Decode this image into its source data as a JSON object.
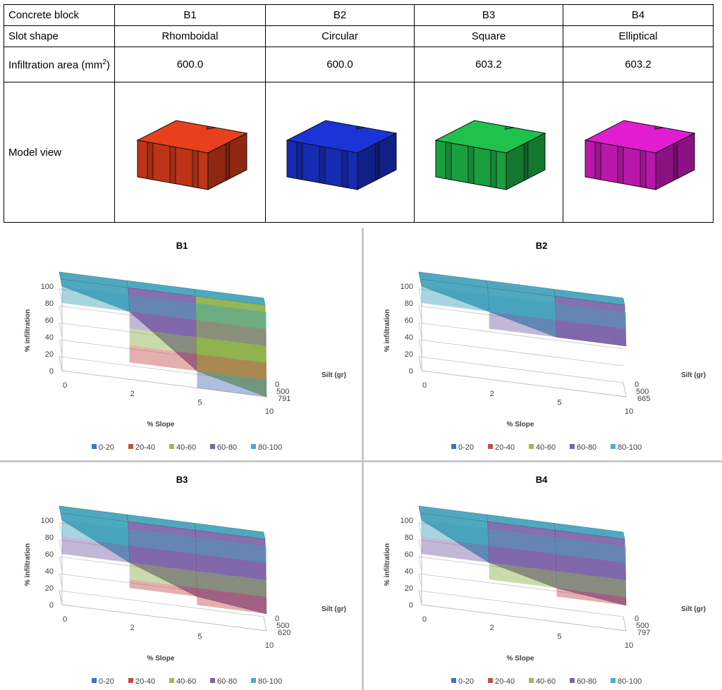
{
  "table": {
    "rows": [
      {
        "label": "Concrete block",
        "cells": [
          "B1",
          "B2",
          "B3",
          "B4"
        ]
      },
      {
        "label": "Slot shape",
        "cells": [
          "Rhomboidal",
          "Circular",
          "Square",
          "Elliptical"
        ]
      },
      {
        "label": "Infiltration area (mm",
        "label_sup": "2",
        "label_end": ")",
        "cells": [
          "600.0",
          "600.0",
          "603.2",
          "603.2"
        ]
      },
      {
        "label": "Model view"
      }
    ],
    "block_colors": [
      "#e8401c",
      "#1a34d8",
      "#1fc24a",
      "#e21cd0"
    ]
  },
  "chart_data": [
    {
      "type": "3d-surface",
      "title": "B1",
      "xlabel": "% Slope",
      "ylabel": "% infiltration",
      "zlabel": "Silt (gr)",
      "x": [
        "0",
        "2",
        "5",
        "10"
      ],
      "z": [
        "0",
        "500",
        "791"
      ],
      "yticks": [
        "0",
        "20",
        "40",
        "60",
        "80",
        "100"
      ],
      "ylim": [
        0,
        100
      ],
      "values": [
        [
          100,
          100,
          100,
          100
        ],
        [
          100,
          100,
          100,
          100
        ],
        [
          100,
          80,
          20,
          0
        ]
      ],
      "legend": [
        "0-20",
        "20-40",
        "40-60",
        "60-80",
        "80-100"
      ]
    },
    {
      "type": "3d-surface",
      "title": "B2",
      "xlabel": "% Slope",
      "ylabel": "% infiltration",
      "zlabel": "Silt (gr)",
      "x": [
        "0",
        "2",
        "5",
        "10"
      ],
      "z": [
        "0",
        "500",
        "665"
      ],
      "yticks": [
        "0",
        "20",
        "40",
        "60",
        "80",
        "100"
      ],
      "ylim": [
        0,
        100
      ],
      "values": [
        [
          100,
          100,
          100,
          100
        ],
        [
          100,
          100,
          100,
          100
        ],
        [
          100,
          80,
          60,
          60
        ]
      ],
      "legend": [
        "0-20",
        "20-40",
        "40-60",
        "60-80",
        "80-100"
      ]
    },
    {
      "type": "3d-surface",
      "title": "B3",
      "xlabel": "% Slope",
      "ylabel": "% infiltration",
      "zlabel": "Silt (gr)",
      "x": [
        "0",
        "2",
        "5",
        "10"
      ],
      "z": [
        "0",
        "500",
        "620"
      ],
      "yticks": [
        "0",
        "20",
        "40",
        "60",
        "80",
        "100"
      ],
      "ylim": [
        0,
        100
      ],
      "values": [
        [
          100,
          100,
          100,
          100
        ],
        [
          100,
          100,
          100,
          100
        ],
        [
          100,
          60,
          30,
          20
        ]
      ],
      "legend": [
        "0-20",
        "20-40",
        "40-60",
        "60-80",
        "80-100"
      ]
    },
    {
      "type": "3d-surface",
      "title": "B4",
      "xlabel": "% Slope",
      "ylabel": "% infiltration",
      "zlabel": "Silt (gr)",
      "x": [
        "0",
        "2",
        "5",
        "10"
      ],
      "z": [
        "0",
        "500",
        "797"
      ],
      "yticks": [
        "0",
        "20",
        "40",
        "60",
        "80",
        "100"
      ],
      "ylim": [
        0,
        100
      ],
      "values": [
        [
          100,
          100,
          100,
          100
        ],
        [
          100,
          100,
          100,
          100
        ],
        [
          100,
          60,
          40,
          30
        ]
      ],
      "legend": [
        "0-20",
        "20-40",
        "40-60",
        "60-80",
        "80-100"
      ]
    }
  ],
  "palette": [
    "#4472c4",
    "#c0504d",
    "#9bbb59",
    "#8064a2",
    "#4bacc6"
  ],
  "surface_colors": [
    "#4a6fb5",
    "#c0504d",
    "#8aaf45",
    "#7b5fa6",
    "#3d9fb8"
  ]
}
